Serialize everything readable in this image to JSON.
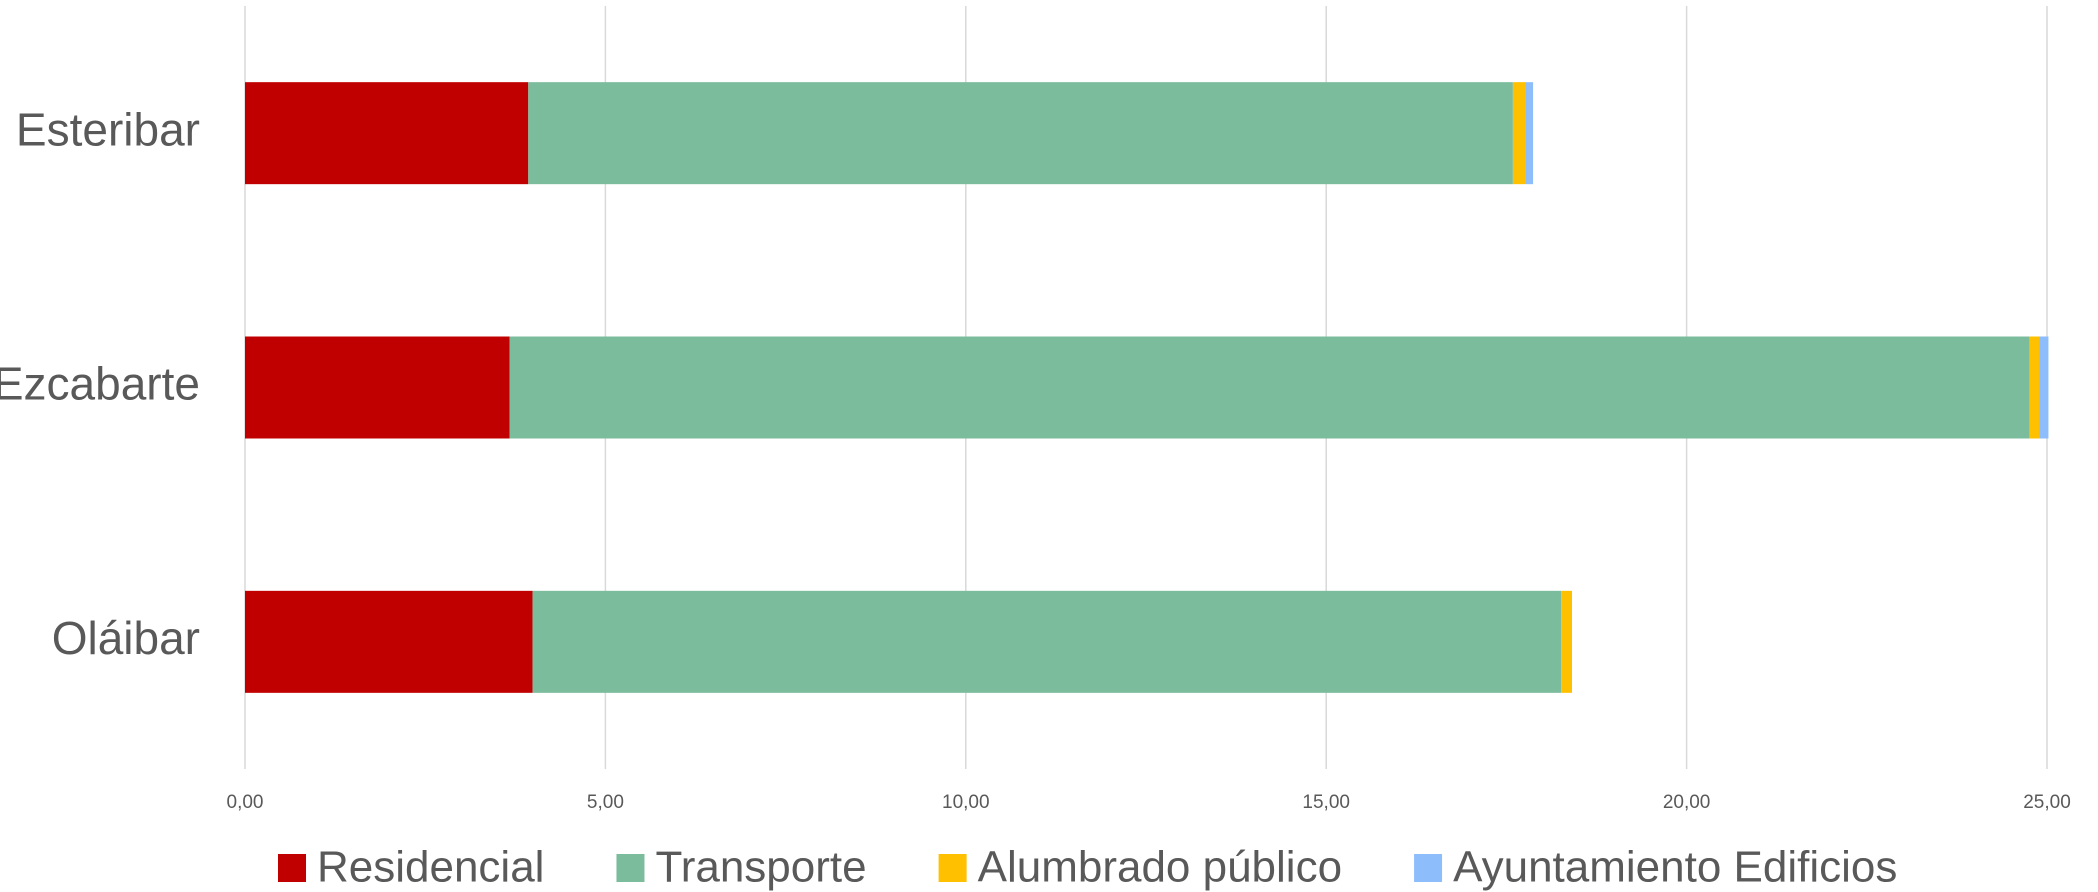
{
  "chart_data": {
    "type": "bar",
    "orientation": "horizontal",
    "stacked": true,
    "categories": [
      "Esteribar",
      "Ezcabarte",
      "Oláibar"
    ],
    "series": [
      {
        "name": "Residencial",
        "color": "#c00000",
        "values": [
          3.93,
          3.67,
          3.99
        ]
      },
      {
        "name": "Transporte",
        "color": "#7bbc9c",
        "values": [
          13.66,
          21.09,
          14.27
        ]
      },
      {
        "name": "Alumbrado público",
        "color": "#ffc000",
        "values": [
          0.17,
          0.13,
          0.15
        ]
      },
      {
        "name": "Ayuntamiento Edificios",
        "color": "#8dbefb",
        "values": [
          0.11,
          0.13,
          0
        ]
      }
    ],
    "xlim": [
      0,
      25
    ],
    "xticks": [
      {
        "value": 0,
        "label": "0,00"
      },
      {
        "value": 5,
        "label": "5,00"
      },
      {
        "value": 10,
        "label": "10,00"
      },
      {
        "value": 15,
        "label": "15,00"
      },
      {
        "value": 20,
        "label": "20,00"
      },
      {
        "value": 25,
        "label": "25,00"
      }
    ],
    "grid": true,
    "legend": "bottom"
  }
}
